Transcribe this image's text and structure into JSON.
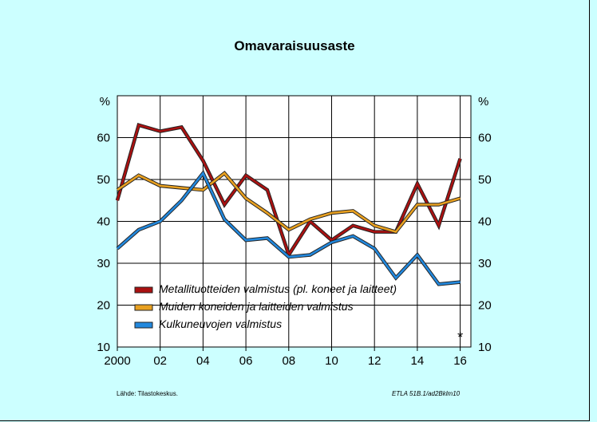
{
  "title": "Omavaraisuusaste",
  "footer": {
    "source": "Lähde:   Tilastokeskus.",
    "code": "ETLA 51B.1/ad2Bklm10"
  },
  "chart_data": {
    "type": "line",
    "title": "Omavaraisuusaste",
    "ylabel_left": "%",
    "ylabel_right": "%",
    "ylim": [
      10,
      70
    ],
    "yticks": [
      10,
      20,
      30,
      40,
      50,
      60
    ],
    "xlim": [
      2000,
      2016.5
    ],
    "xticks": [
      2000,
      2002,
      2004,
      2006,
      2008,
      2010,
      2012,
      2014,
      2016
    ],
    "xticklabels": [
      "2000",
      "02",
      "04",
      "06",
      "08",
      "10",
      "12",
      "14",
      "16"
    ],
    "grid": true,
    "legend_position": "bottom-left",
    "annotation": "*",
    "x": [
      2000,
      2001,
      2002,
      2003,
      2004,
      2005,
      2006,
      2007,
      2008,
      2009,
      2010,
      2011,
      2012,
      2013,
      2014,
      2015,
      2016
    ],
    "series": [
      {
        "name": "Metallituotteiden valmistus (pl. koneet ja laitteet)",
        "color": "#aa1111",
        "values": [
          45,
          63,
          61.5,
          62.5,
          54.5,
          44,
          51,
          47.5,
          32,
          40,
          35.5,
          39,
          37.5,
          37.5,
          49,
          39,
          55
        ]
      },
      {
        "name": "Muiden koneiden ja laitteiden valmistus",
        "color": "#e8a020",
        "values": [
          47.5,
          51,
          48.5,
          48,
          47.5,
          51.5,
          45.5,
          42,
          38,
          40.5,
          42,
          42.5,
          39,
          37.5,
          44,
          44,
          45.5
        ]
      },
      {
        "name": "Kulkuneuvojen valmistus",
        "color": "#2288dd",
        "values": [
          33.5,
          38,
          40,
          45,
          51.5,
          40.5,
          35.5,
          36,
          31.5,
          32,
          35,
          36.5,
          33.5,
          26.5,
          32,
          25,
          25.5
        ]
      }
    ]
  }
}
